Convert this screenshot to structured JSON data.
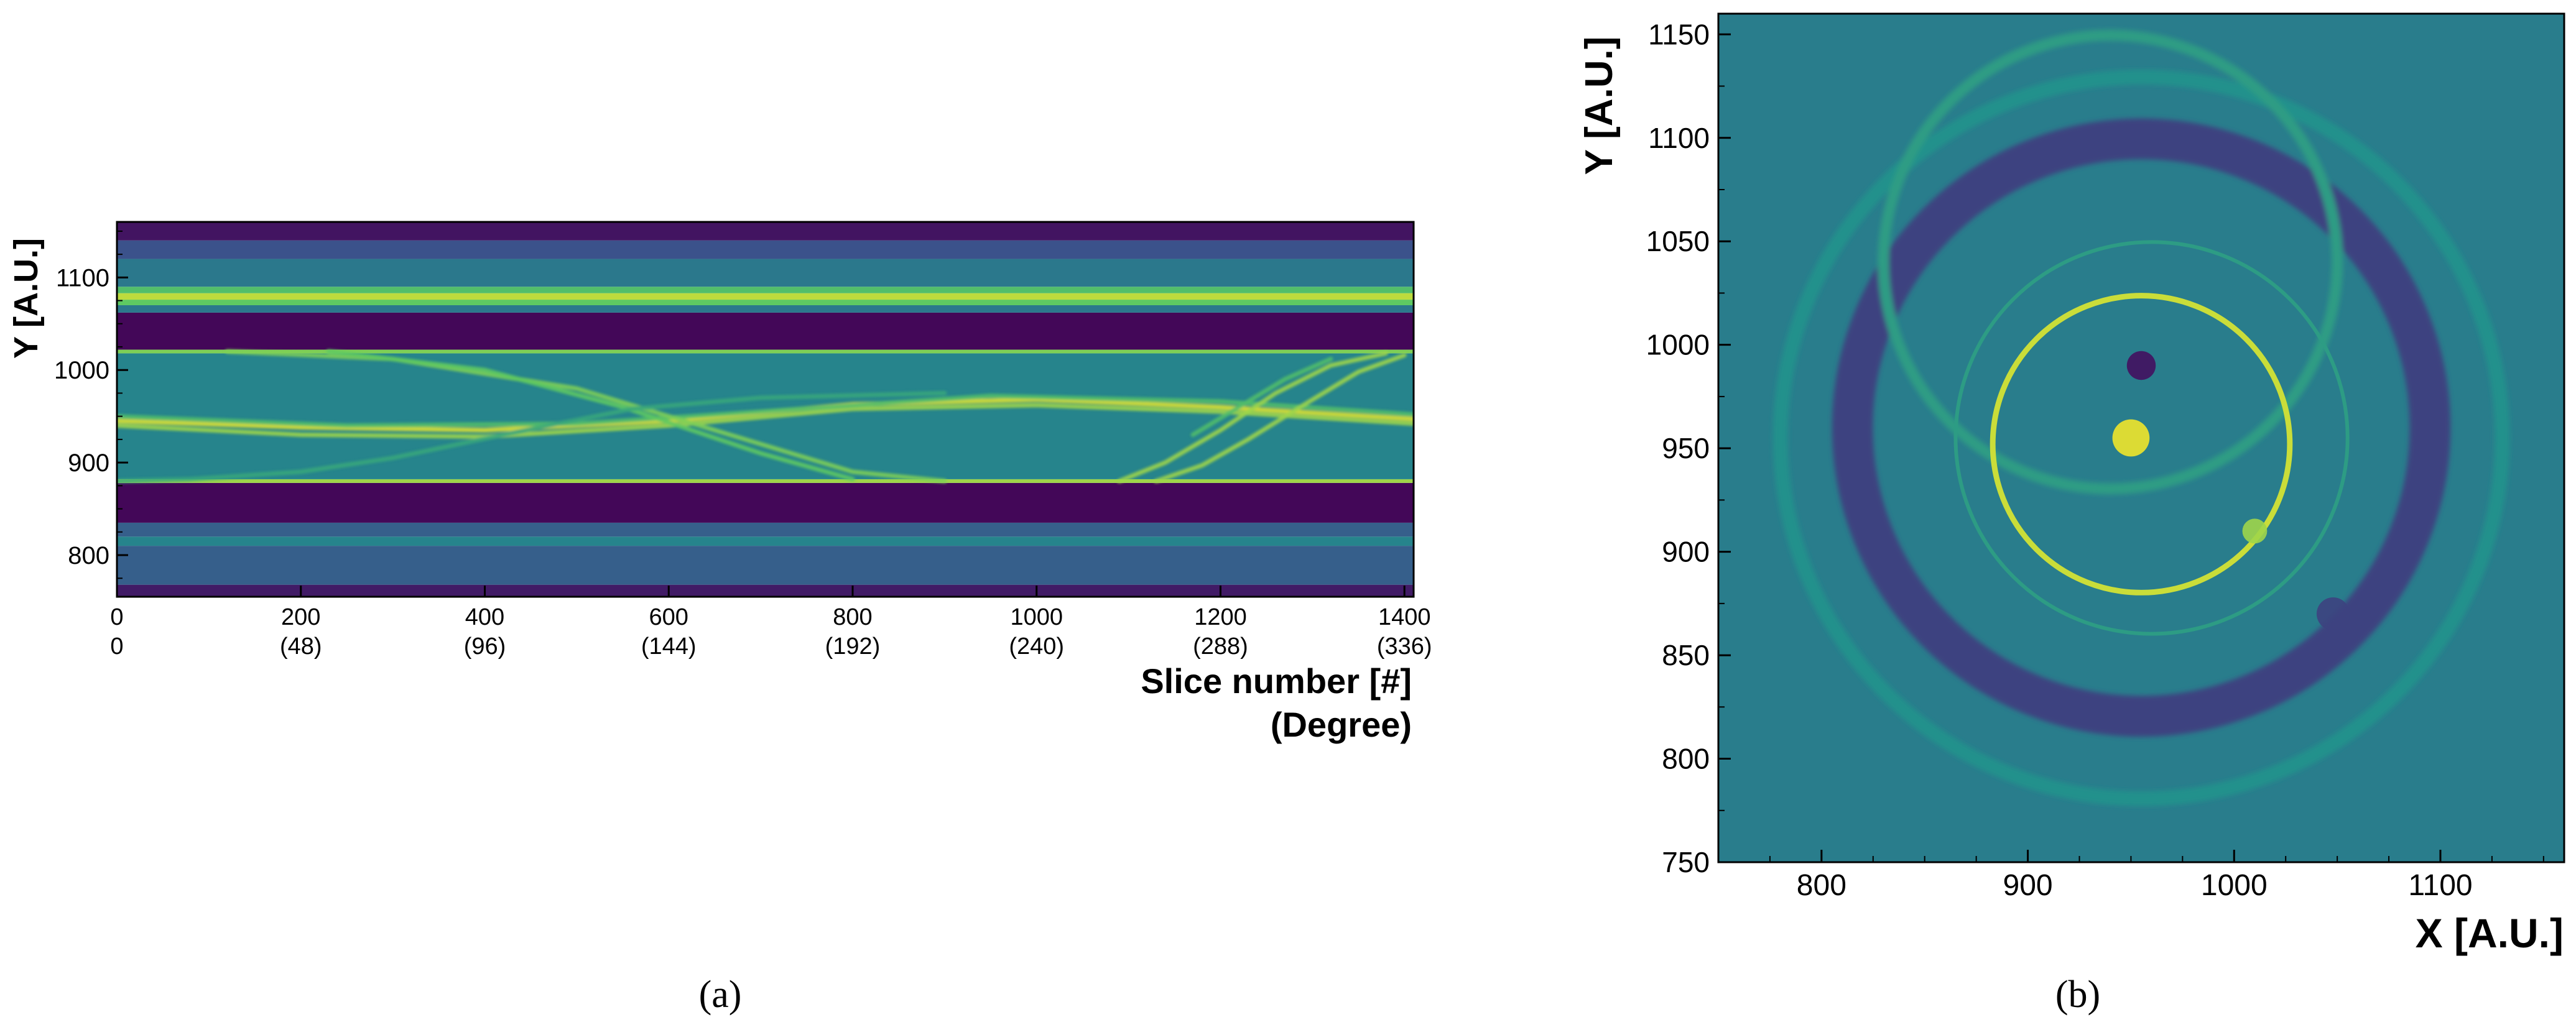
{
  "colors": {
    "viridis_dark": "#440154",
    "viridis_blue": "#31688e",
    "viridis_teal": "#21908d",
    "viridis_green": "#35b779",
    "viridis_yellow": "#fde725",
    "axis": "#000000"
  },
  "chart_data": [
    {
      "panel": "a",
      "type": "heatmap",
      "caption": "(a)",
      "ylabel": "Y [A.U.]",
      "xlabel": "Slice number [#]",
      "xlabel2": "(Degree)",
      "xlim": [
        0,
        1410
      ],
      "ylim": [
        755,
        1160
      ],
      "xticks": [
        0,
        200,
        400,
        600,
        800,
        1000,
        1200,
        1400
      ],
      "xtick_labels2": [
        "0",
        "(48)",
        "(96)",
        "(144)",
        "(192)",
        "(240)",
        "(288)",
        "(336)"
      ],
      "yticks": [
        800,
        900,
        1000,
        1100
      ],
      "yticks_labeled": [
        800,
        900,
        1000,
        1100
      ],
      "bands": [
        {
          "y0": 755,
          "y1": 768,
          "level": 0.08
        },
        {
          "y0": 768,
          "y1": 810,
          "level": 0.3
        },
        {
          "y0": 810,
          "y1": 820,
          "level": 0.45
        },
        {
          "y0": 820,
          "y1": 835,
          "level": 0.3
        },
        {
          "y0": 835,
          "y1": 878,
          "level": 0.02
        },
        {
          "y0": 878,
          "y1": 882,
          "level": 0.85
        },
        {
          "y0": 882,
          "y1": 1018,
          "level": 0.45
        },
        {
          "y0": 1018,
          "y1": 1022,
          "level": 0.8
        },
        {
          "y0": 1022,
          "y1": 1062,
          "level": 0.02
        },
        {
          "y0": 1062,
          "y1": 1070,
          "level": 0.4
        },
        {
          "y0": 1070,
          "y1": 1076,
          "level": 0.75
        },
        {
          "y0": 1076,
          "y1": 1083,
          "level": 0.9
        },
        {
          "y0": 1083,
          "y1": 1090,
          "level": 0.7
        },
        {
          "y0": 1090,
          "y1": 1120,
          "level": 0.4
        },
        {
          "y0": 1120,
          "y1": 1140,
          "level": 0.25
        },
        {
          "y0": 1140,
          "y1": 1160,
          "level": 0.06
        }
      ],
      "traces": [
        {
          "points": [
            [
              0,
              945
            ],
            [
              200,
              938
            ],
            [
              400,
              935
            ],
            [
              600,
              945
            ],
            [
              800,
              963
            ],
            [
              1000,
              968
            ],
            [
              1200,
              960
            ],
            [
              1410,
              947
            ]
          ],
          "level": 0.95
        },
        {
          "points": [
            [
              0,
              940
            ],
            [
              200,
              930
            ],
            [
              400,
              928
            ],
            [
              600,
              940
            ],
            [
              800,
              958
            ],
            [
              1000,
              962
            ],
            [
              1200,
              955
            ],
            [
              1410,
              942
            ]
          ],
          "level": 0.85
        },
        {
          "points": [
            [
              0,
              950
            ],
            [
              250,
              940
            ],
            [
              500,
              942
            ],
            [
              700,
              955
            ],
            [
              950,
              972
            ],
            [
              1200,
              966
            ],
            [
              1410,
              952
            ]
          ],
          "level": 0.7
        },
        {
          "points": [
            [
              120,
              1020
            ],
            [
              300,
              1012
            ],
            [
              500,
              980
            ],
            [
              650,
              935
            ],
            [
              800,
              890
            ],
            [
              900,
              880
            ]
          ],
          "level": 0.8
        },
        {
          "points": [
            [
              230,
              1020
            ],
            [
              400,
              1000
            ],
            [
              550,
              960
            ],
            [
              700,
              910
            ],
            [
              800,
              882
            ]
          ],
          "level": 0.75
        },
        {
          "points": [
            [
              0,
              880
            ],
            [
              80,
              882
            ],
            [
              200,
              890
            ],
            [
              300,
              905
            ],
            [
              420,
              930
            ],
            [
              560,
              958
            ],
            [
              700,
              970
            ],
            [
              900,
              975
            ]
          ],
          "level": 0.6
        },
        {
          "points": [
            [
              1090,
              880
            ],
            [
              1140,
              900
            ],
            [
              1200,
              935
            ],
            [
              1260,
              975
            ],
            [
              1320,
              1005
            ],
            [
              1380,
              1018
            ]
          ],
          "level": 0.85
        },
        {
          "points": [
            [
              1130,
              880
            ],
            [
              1180,
              897
            ],
            [
              1230,
              925
            ],
            [
              1290,
              962
            ],
            [
              1350,
              998
            ],
            [
              1400,
              1016
            ]
          ],
          "level": 0.85
        },
        {
          "points": [
            [
              1170,
              930
            ],
            [
              1220,
              960
            ],
            [
              1270,
              990
            ],
            [
              1320,
              1012
            ]
          ],
          "level": 0.7
        }
      ]
    },
    {
      "panel": "b",
      "type": "heatmap",
      "caption": "(b)",
      "ylabel": "Y [A.U.]",
      "xlabel": "X [A.U.]",
      "xlim": [
        750,
        1160
      ],
      "ylim": [
        750,
        1160
      ],
      "xticks": [
        800,
        900,
        1000,
        1100
      ],
      "yticks": [
        750,
        800,
        850,
        900,
        950,
        1000,
        1050,
        1100,
        1150
      ],
      "background_level": 0.42,
      "rings": [
        {
          "cx": 955,
          "cy": 955,
          "r": 175,
          "level": 0.5,
          "width": 8
        },
        {
          "cx": 955,
          "cy": 960,
          "r": 140,
          "level": 0.2,
          "width": 22
        },
        {
          "cx": 960,
          "cy": 955,
          "r": 95,
          "level": 0.55,
          "width": 2
        },
        {
          "cx": 955,
          "cy": 952,
          "r": 72,
          "level": 0.92,
          "width": 3
        },
        {
          "cx": 940,
          "cy": 1040,
          "r": 110,
          "level": 0.55,
          "width": 6
        }
      ],
      "blobs": [
        {
          "cx": 950,
          "cy": 955,
          "r": 9,
          "level": 0.98
        },
        {
          "cx": 955,
          "cy": 990,
          "r": 7,
          "level": 0.05
        },
        {
          "cx": 1048,
          "cy": 870,
          "r": 8,
          "level": 0.2
        },
        {
          "cx": 1010,
          "cy": 910,
          "r": 6,
          "level": 0.85
        }
      ]
    }
  ]
}
